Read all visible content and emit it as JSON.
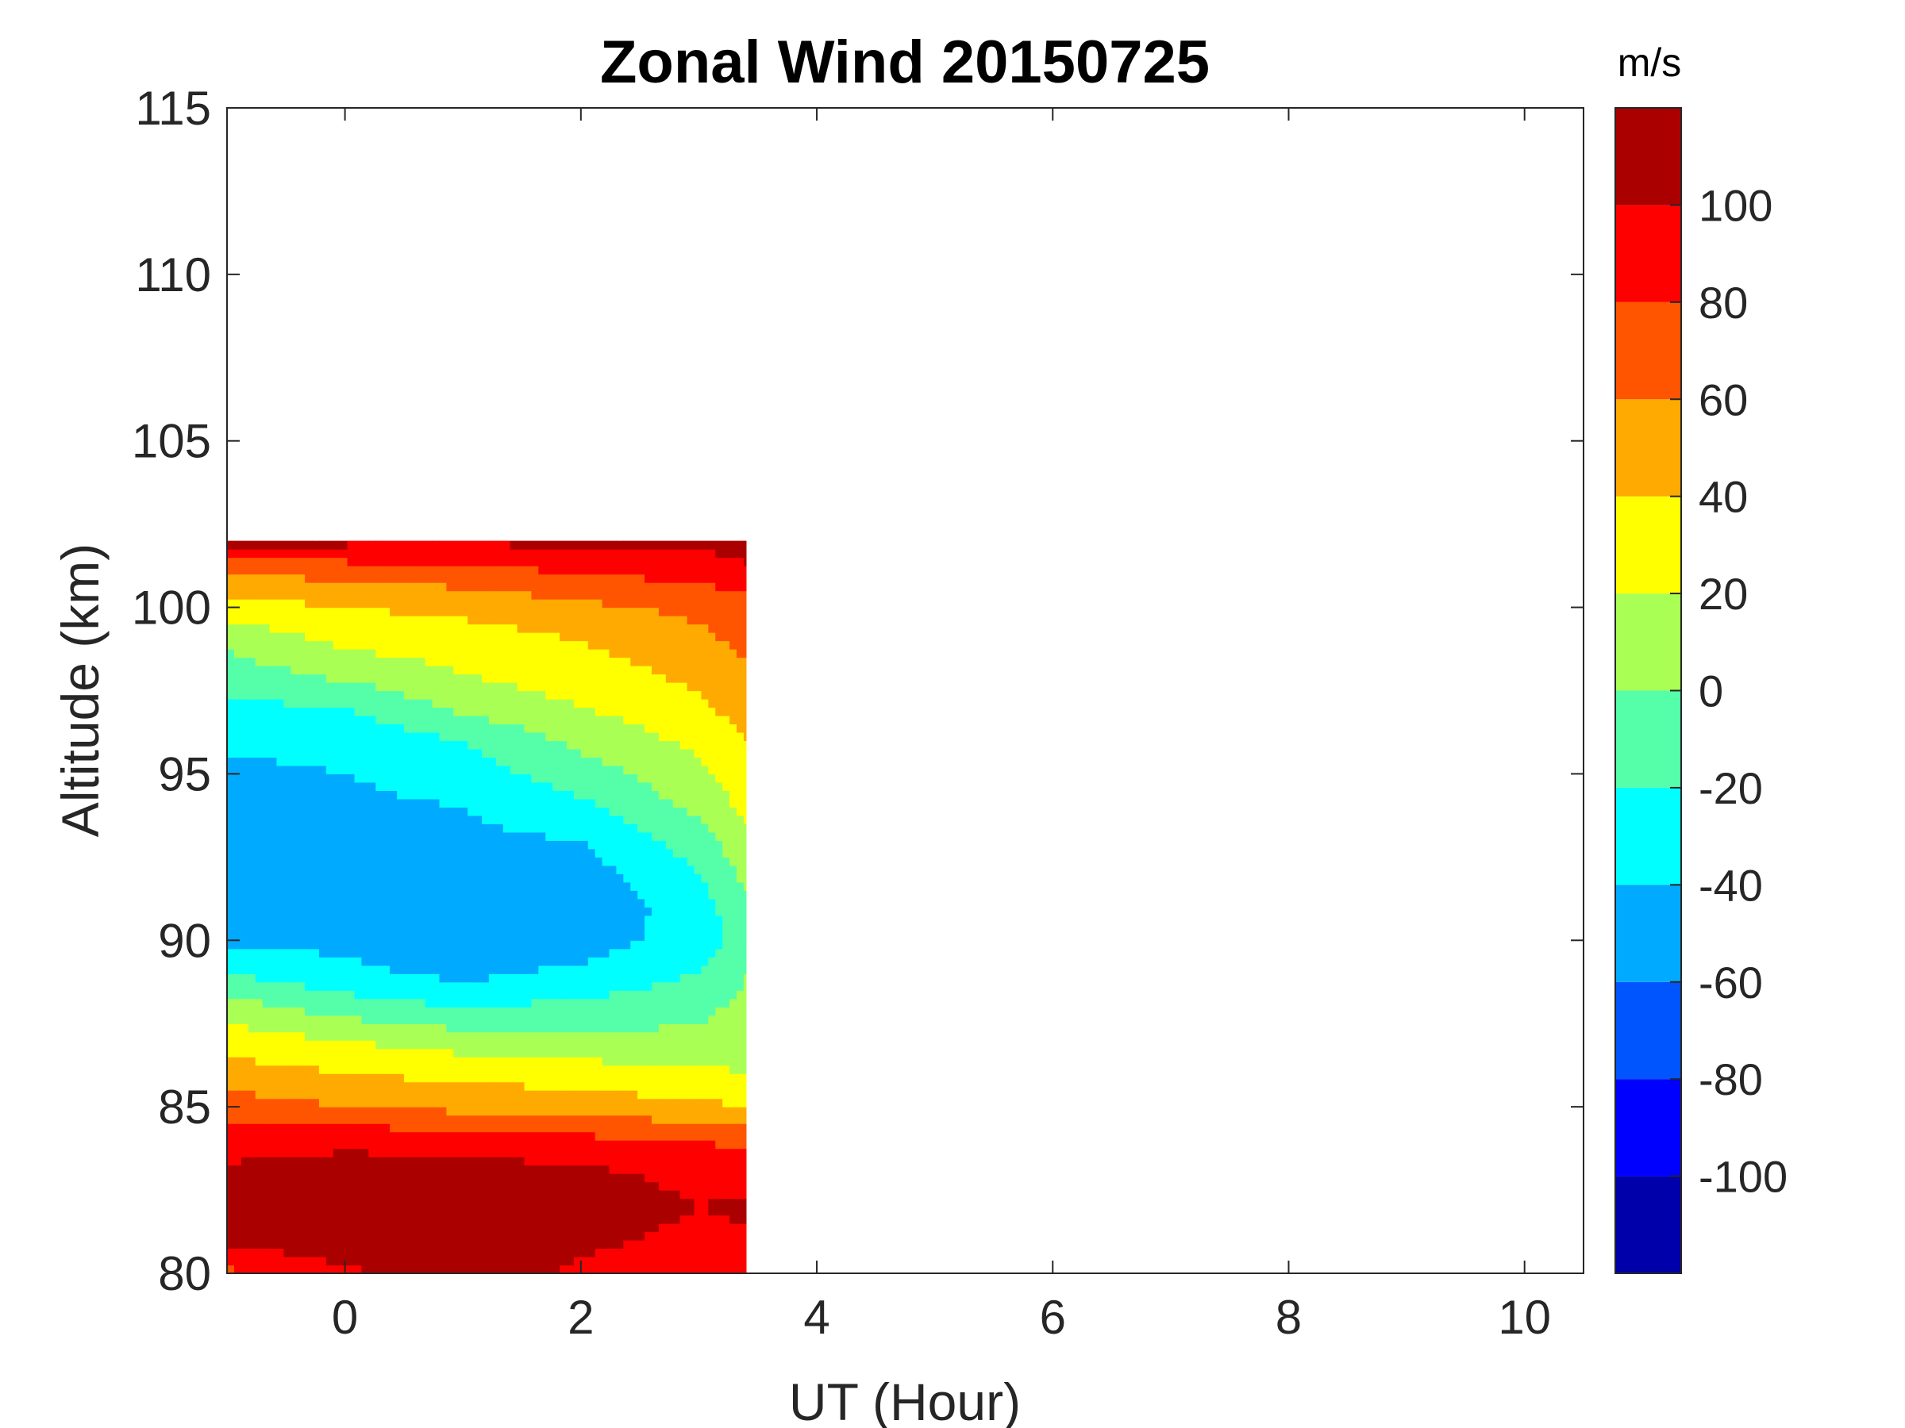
{
  "chart_data": {
    "type": "heatmap",
    "title": "Zonal Wind 20150725",
    "xlabel": "UT (Hour)",
    "ylabel": "Altitude (km)",
    "xlim": [
      -1,
      10.5
    ],
    "ylim": [
      80,
      115
    ],
    "xticks": [
      "0",
      "2",
      "4",
      "6",
      "8",
      "10"
    ],
    "xtick_values": [
      0,
      2,
      4,
      6,
      8,
      10
    ],
    "yticks": [
      "80",
      "85",
      "90",
      "95",
      "100",
      "105",
      "110",
      "115"
    ],
    "ytick_values": [
      80,
      85,
      90,
      95,
      100,
      105,
      110,
      115
    ],
    "colorbar": {
      "unit": "m/s",
      "range": [
        -120,
        120
      ],
      "level_step": 20,
      "tick_labels": [
        "-100",
        "-80",
        "-60",
        "-40",
        "-20",
        "0",
        "20",
        "40",
        "60",
        "80",
        "100"
      ],
      "tick_values": [
        -100,
        -80,
        -60,
        -40,
        -20,
        0,
        20,
        40,
        60,
        80,
        100
      ],
      "colors": [
        "#0000aa",
        "#0000ff",
        "#0055ff",
        "#00aaff",
        "#00ffff",
        "#55ffaa",
        "#aaff55",
        "#ffff00",
        "#ffaa00",
        "#ff5500",
        "#ff0000",
        "#aa0000"
      ]
    },
    "data_extent": {
      "x_range": [
        -1,
        3.4
      ],
      "altitude_range": [
        80,
        102
      ]
    },
    "profile_altitudes_km": [
      80,
      81,
      82,
      83,
      84,
      85,
      86,
      87,
      88,
      89,
      90,
      91,
      92,
      93,
      94,
      95,
      96,
      97,
      98,
      99,
      100,
      101,
      102
    ],
    "profile_times_ut": [
      -1,
      0,
      1,
      2,
      3,
      3.4
    ],
    "wind_ms": [
      [
        75,
        95,
        115,
        95,
        80,
        85
      ],
      [
        105,
        115,
        110,
        105,
        95,
        95
      ],
      [
        110,
        115,
        115,
        110,
        100,
        105
      ],
      [
        105,
        110,
        110,
        105,
        95,
        90
      ],
      [
        90,
        95,
        90,
        85,
        80,
        75
      ],
      [
        70,
        60,
        55,
        50,
        45,
        40
      ],
      [
        50,
        40,
        35,
        30,
        25,
        20
      ],
      [
        30,
        20,
        10,
        5,
        5,
        10
      ],
      [
        10,
        -10,
        -20,
        -15,
        -5,
        5
      ],
      [
        -20,
        -35,
        -45,
        -35,
        -20,
        0
      ],
      [
        -45,
        -45,
        -55,
        -50,
        -30,
        -10
      ],
      [
        -55,
        -40,
        -55,
        -55,
        -30,
        -5
      ],
      [
        -55,
        -40,
        -55,
        -50,
        -20,
        5
      ],
      [
        -50,
        -45,
        -45,
        -40,
        -10,
        15
      ],
      [
        -55,
        -45,
        -40,
        -25,
        5,
        25
      ],
      [
        -45,
        -40,
        -30,
        -10,
        15,
        30
      ],
      [
        -35,
        -35,
        -20,
        5,
        25,
        40
      ],
      [
        -25,
        -20,
        5,
        20,
        35,
        50
      ],
      [
        -10,
        5,
        20,
        30,
        45,
        55
      ],
      [
        5,
        25,
        30,
        40,
        55,
        65
      ],
      [
        30,
        40,
        45,
        55,
        65,
        70
      ],
      [
        60,
        65,
        70,
        80,
        85,
        95
      ],
      [
        110,
        105,
        100,
        110,
        105,
        110
      ]
    ]
  }
}
